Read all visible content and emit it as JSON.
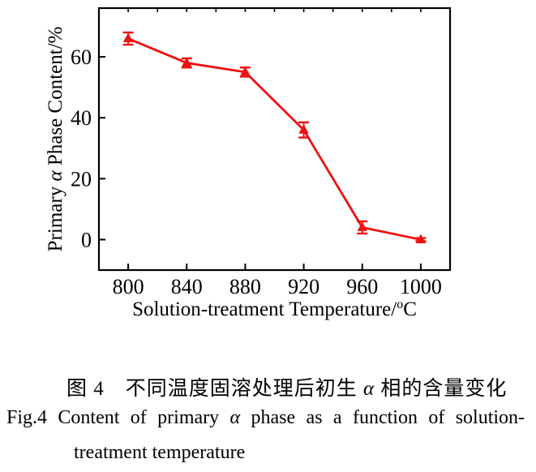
{
  "figure": {
    "captions": {
      "zh": {
        "pre": "图 4　不同温度固溶处理后初生 ",
        "alpha": "α",
        "post": " 相的含量变化"
      },
      "en_line1": {
        "fig": "Fig.4",
        "pre": "Content of primary",
        "alpha": "α",
        "post": "phase as a function of solution-"
      },
      "en_line2": "treatment temperature"
    }
  },
  "chart_data": {
    "type": "line",
    "title": "",
    "x": [
      800,
      840,
      880,
      920,
      960,
      1000
    ],
    "series": [
      {
        "name": "primary-alpha-phase-content",
        "values": [
          66,
          58,
          55,
          36,
          4,
          0
        ],
        "yerr": [
          2,
          1.5,
          1.5,
          2.5,
          2,
          0.5
        ]
      }
    ],
    "xlabel": "Solution-treatment Temperature/°C",
    "xlabel_parts": {
      "pre": "Solution-treatment Temperature/",
      "sup": "o",
      "post": "C"
    },
    "ylabel": "Primary α Phase Content/%",
    "ylabel_parts": {
      "pre": "Primary ",
      "alpha": "α",
      "post": " Phase Content/%"
    },
    "xlim": [
      780,
      1020
    ],
    "ylim": [
      -10,
      76
    ],
    "xticks": [
      800,
      840,
      880,
      920,
      960,
      1000
    ],
    "yticks": [
      0,
      20,
      40,
      60
    ],
    "top_minor_ticks": {
      "start": 800,
      "end": 1000,
      "step": 20
    },
    "grid": false,
    "legend": null,
    "marker": "triangle-up",
    "colors": {
      "line": "#ee1111",
      "axis": "#000000",
      "text": "#000000"
    }
  }
}
